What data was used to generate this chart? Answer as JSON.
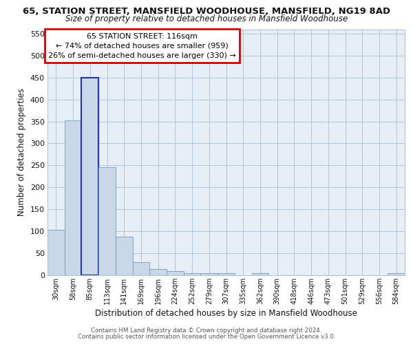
{
  "title_line1": "65, STATION STREET, MANSFIELD WOODHOUSE, MANSFIELD, NG19 8AD",
  "title_line2": "Size of property relative to detached houses in Mansfield Woodhouse",
  "xlabel": "Distribution of detached houses by size in Mansfield Woodhouse",
  "ylabel": "Number of detached properties",
  "footer_line1": "Contains HM Land Registry data © Crown copyright and database right 2024.",
  "footer_line2": "Contains public sector information licensed under the Open Government Licence v3.0.",
  "annotation_title": "65 STATION STREET: 116sqm",
  "annotation_line1": "← 74% of detached houses are smaller (959)",
  "annotation_line2": "26% of semi-detached houses are larger (330) →",
  "categories": [
    "30sqm",
    "58sqm",
    "85sqm",
    "113sqm",
    "141sqm",
    "169sqm",
    "196sqm",
    "224sqm",
    "252sqm",
    "279sqm",
    "307sqm",
    "335sqm",
    "362sqm",
    "390sqm",
    "418sqm",
    "446sqm",
    "473sqm",
    "501sqm",
    "529sqm",
    "556sqm",
    "584sqm"
  ],
  "values": [
    103,
    353,
    449,
    246,
    88,
    30,
    14,
    9,
    5,
    5,
    5,
    0,
    5,
    0,
    0,
    0,
    0,
    0,
    0,
    0,
    5
  ],
  "bar_color": "#c8d8e8",
  "bar_edge_color": "#7799bb",
  "highlight_bar_index": 2,
  "highlight_bar_edge_color": "#2233aa",
  "annotation_box_edge": "#cc0000",
  "background_color": "#ffffff",
  "plot_bg_color": "#e8eef6",
  "grid_color": "#afc4d8",
  "ylim": [
    0,
    560
  ],
  "yticks": [
    0,
    50,
    100,
    150,
    200,
    250,
    300,
    350,
    400,
    450,
    500,
    550
  ]
}
